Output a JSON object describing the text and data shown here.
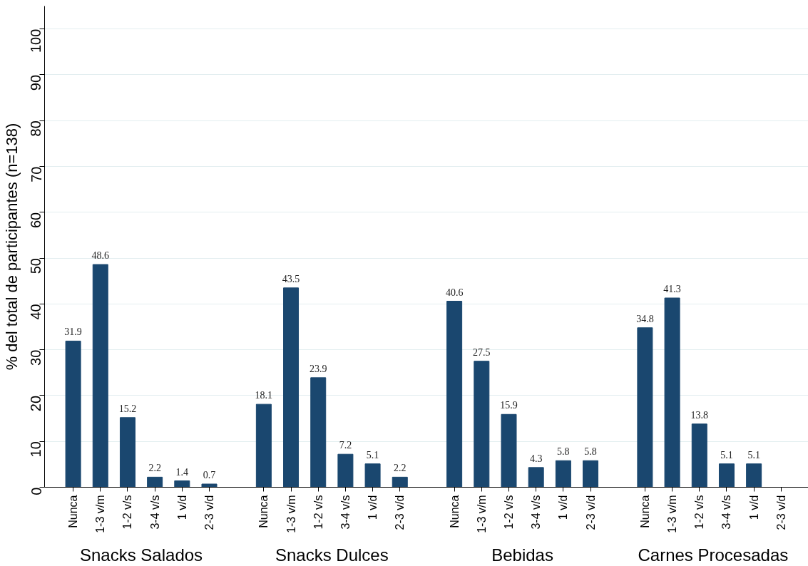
{
  "chart_data": {
    "type": "bar",
    "ylabel": "% del total de participantes (n=138)",
    "categories": [
      "Nunca",
      "1-3 v/m",
      "1-2 v/s",
      "3-4 v/s",
      "1 v/d",
      "2-3 v/d",
      "Nunca",
      "1-3 v/m",
      "1-2 v/s",
      "3-4 v/s",
      "1 v/d",
      "2-3 v/d",
      "Nunca",
      "1-3 v/m",
      "1-2 v/s",
      "3-4 v/s",
      "1 v/d",
      "2-3 v/d",
      "Nunca",
      "1-3 v/m",
      "1-2 v/s",
      "3-4 v/s",
      "1 v/d",
      "2-3 v/d"
    ],
    "values": [
      31.9,
      48.6,
      15.2,
      2.2,
      1.4,
      0.7,
      18.1,
      43.5,
      23.9,
      7.2,
      5.1,
      2.2,
      40.6,
      27.5,
      15.9,
      4.3,
      5.8,
      5.8,
      34.8,
      41.3,
      13.8,
      5.1,
      5.1,
      null
    ],
    "value_labels": [
      "31.9",
      "48.6",
      "15.2",
      "2.2",
      "1.4",
      "0.7",
      "18.1",
      "43.5",
      "23.9",
      "7.2",
      "5.1",
      "2.2",
      "40.6",
      "27.5",
      "15.9",
      "4.3",
      "5.8",
      "5.8",
      "34.8",
      "41.3",
      "13.8",
      "5.1",
      "5.1",
      null
    ],
    "color": "#1a476f",
    "annotations": [
      "Snacks Salados",
      "Snacks Dulces",
      "Bebidas",
      "Carnes Procesadas"
    ],
    "ylim": [
      0,
      105
    ],
    "yticks": [
      0,
      10,
      20,
      30,
      40,
      50,
      60,
      70,
      80,
      90,
      100
    ],
    "grid": "y"
  }
}
